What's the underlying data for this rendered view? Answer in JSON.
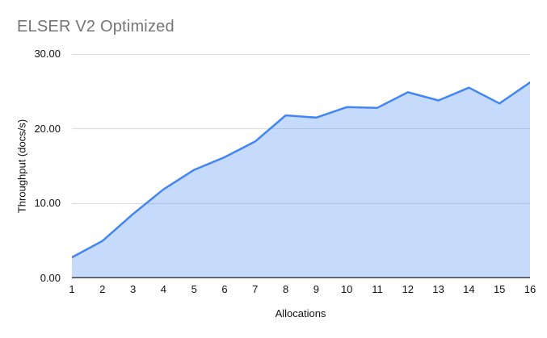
{
  "chart_data": {
    "type": "area",
    "title": "ELSER V2 Optimized",
    "xlabel": "Allocations",
    "ylabel": "Throughput (docs/s)",
    "x": [
      1,
      2,
      3,
      4,
      5,
      6,
      7,
      8,
      9,
      10,
      11,
      12,
      13,
      14,
      15,
      16
    ],
    "values": [
      2.8,
      5.0,
      8.6,
      11.9,
      14.5,
      16.2,
      18.3,
      21.8,
      21.5,
      22.9,
      22.8,
      24.9,
      23.8,
      25.5,
      23.4,
      26.2
    ],
    "ylim": [
      0,
      30
    ],
    "ytick_labels": [
      "0.00",
      "10.00",
      "20.00",
      "30.00"
    ],
    "grid": "horizontal",
    "legend_position": "none",
    "colors": {
      "line": "#4285f4",
      "area_fill": "rgba(66,133,244,0.30)",
      "gridline": "#d9d9d9",
      "axis_line": "#3c4043",
      "title_text": "#757575",
      "tick_text": "#111111"
    }
  }
}
